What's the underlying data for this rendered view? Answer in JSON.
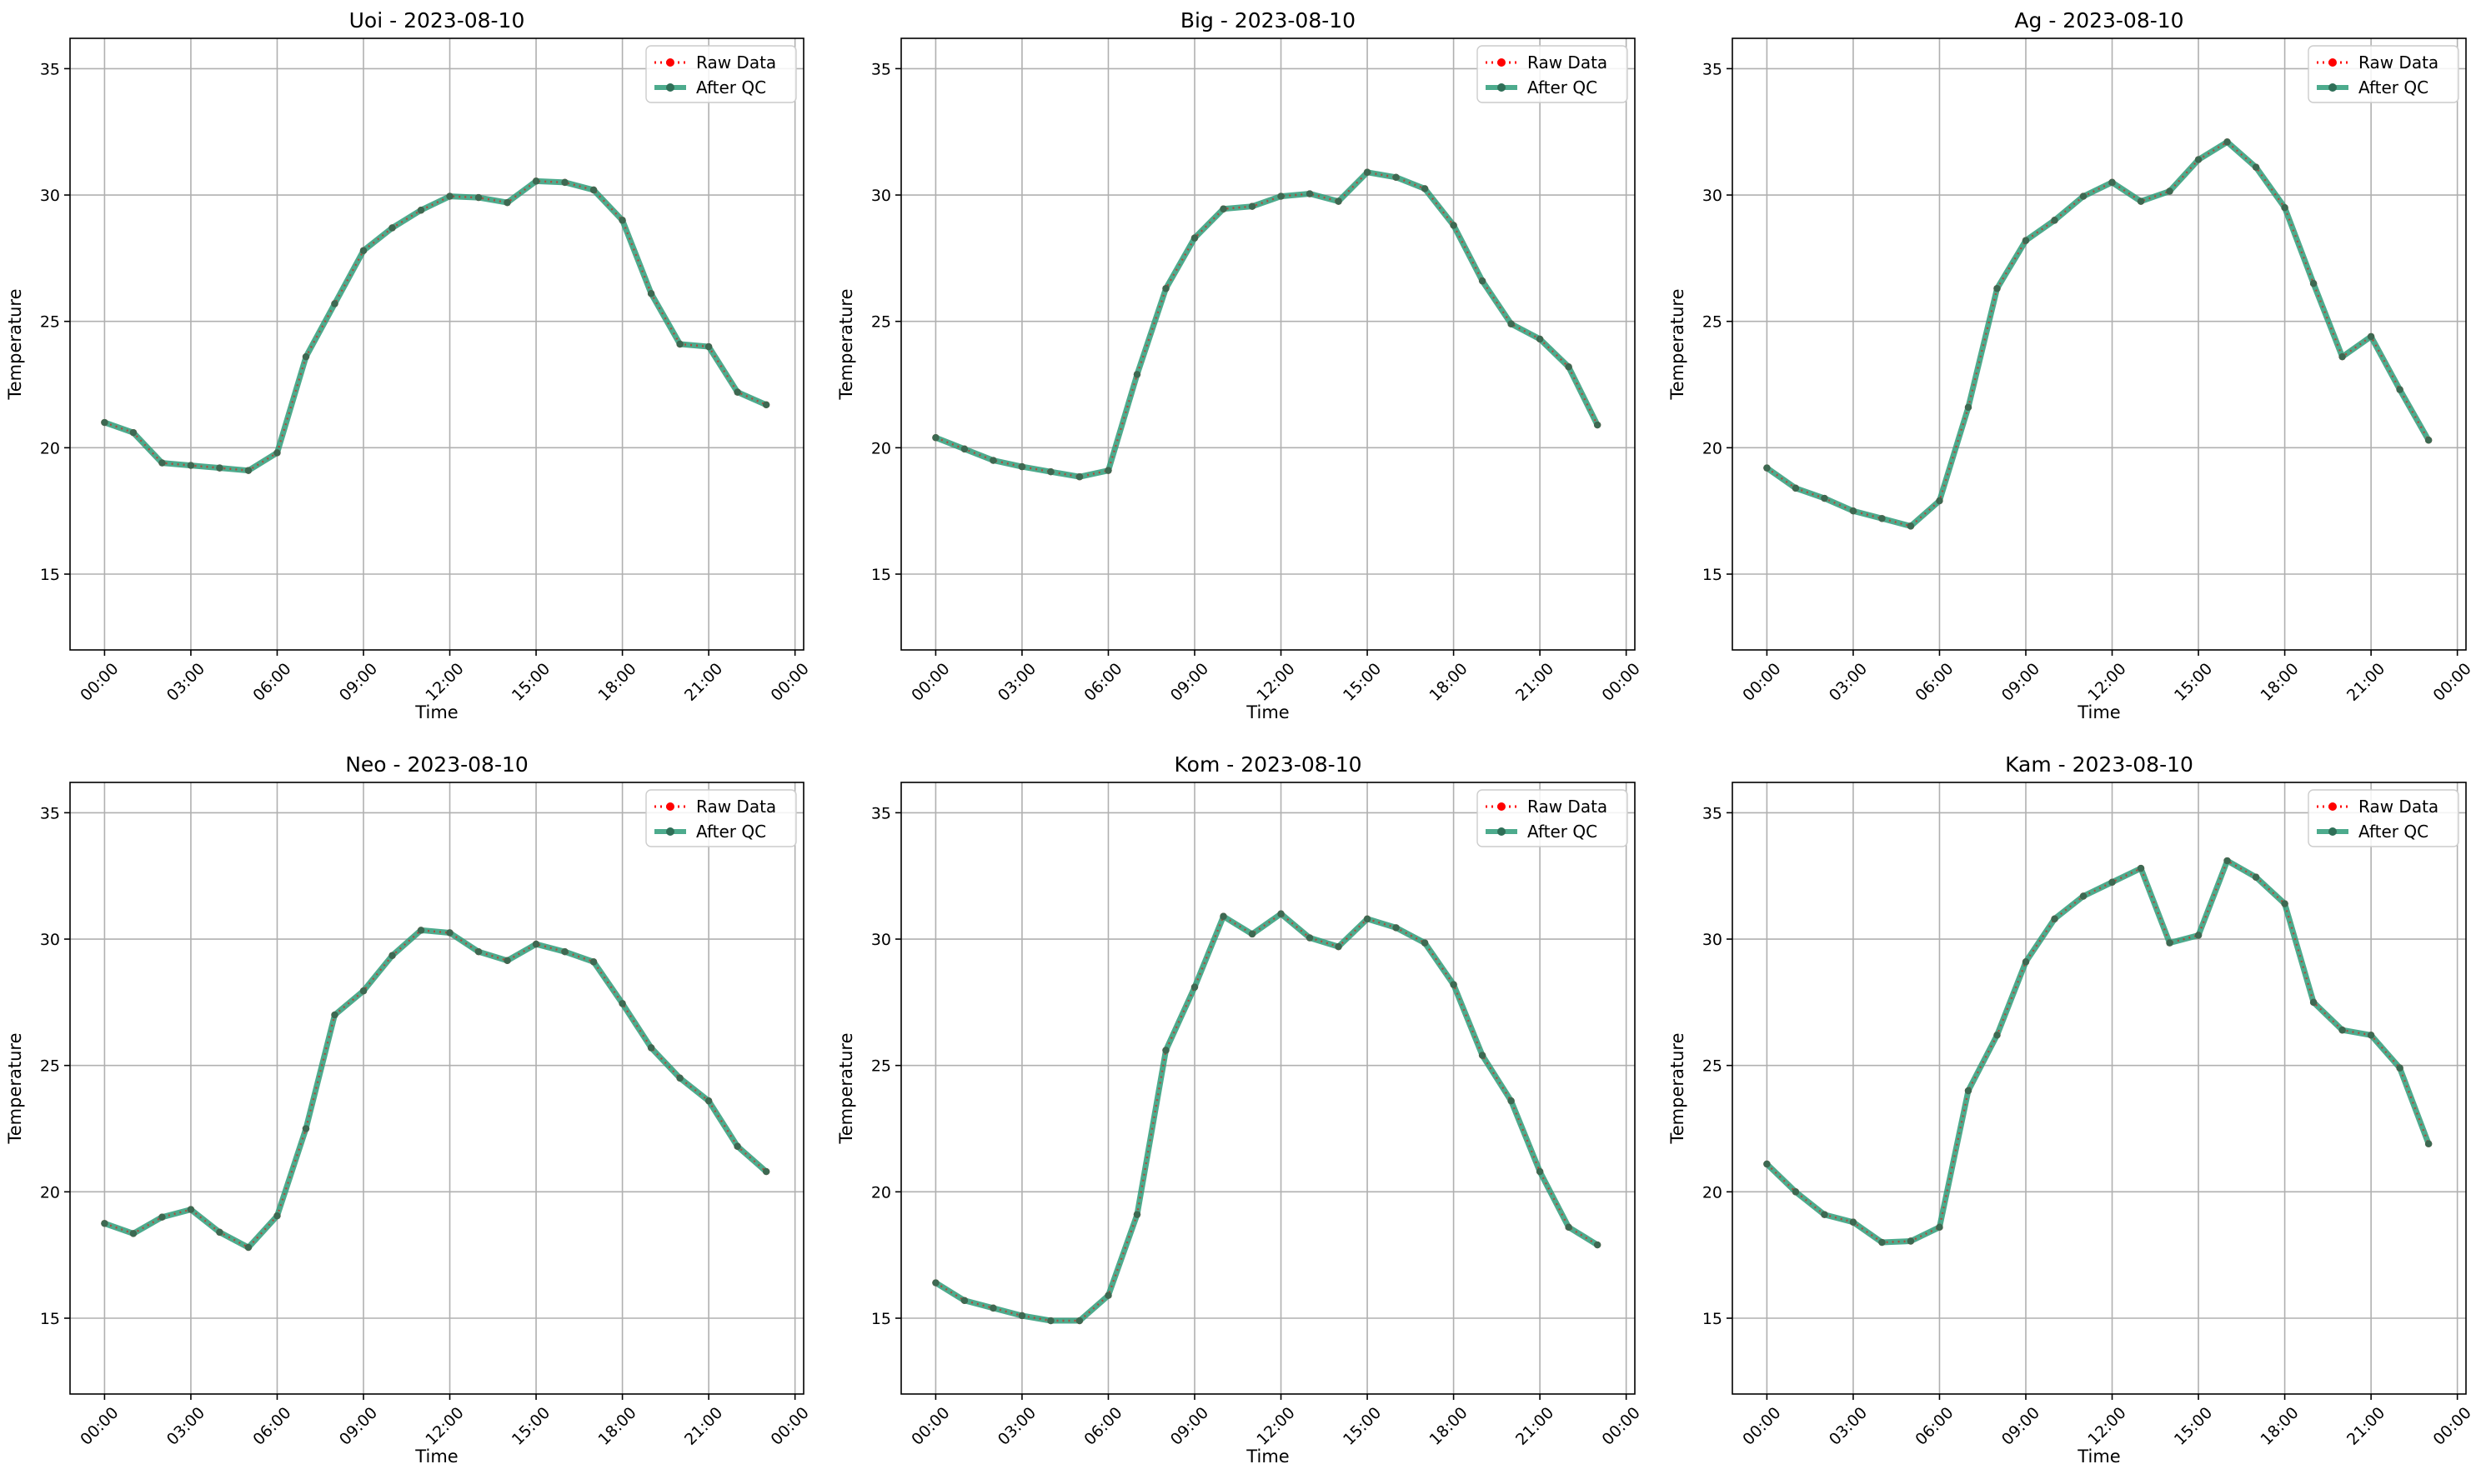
{
  "figure": {
    "legend": {
      "raw_label": "Raw Data",
      "qc_label": "After QC",
      "position": "upper-right",
      "raw_color": "#ff0000",
      "qc_color": "#2e9c79"
    },
    "xlabel": "Time",
    "ylabel": "Temperature",
    "x_ticks": [
      "00:00",
      "03:00",
      "06:00",
      "09:00",
      "12:00",
      "15:00",
      "18:00",
      "21:00",
      "00:00"
    ],
    "y_ticks": [
      "15",
      "20",
      "25",
      "30",
      "35"
    ],
    "ylim": [
      12,
      36.2
    ],
    "xlim_hours": [
      -1.2,
      24.3
    ],
    "grid": true
  },
  "chart_data": [
    {
      "type": "line",
      "title": "Uoi - 2023-08-10",
      "x_hours": [
        0,
        1,
        2,
        3,
        4,
        5,
        6,
        7,
        8,
        9,
        10,
        11,
        12,
        13,
        14,
        15,
        16,
        17,
        18,
        19,
        20,
        21,
        22,
        23
      ],
      "series": [
        {
          "name": "Raw Data",
          "values": [
            21.0,
            20.6,
            19.4,
            19.3,
            19.2,
            19.1,
            19.8,
            23.6,
            25.7,
            27.8,
            28.7,
            29.4,
            29.95,
            29.9,
            29.7,
            30.55,
            30.5,
            30.2,
            29.0,
            26.1,
            24.1,
            24.0,
            22.2,
            21.7
          ]
        },
        {
          "name": "After QC",
          "values": [
            21.0,
            20.6,
            19.4,
            19.3,
            19.2,
            19.1,
            19.8,
            23.6,
            25.7,
            27.8,
            28.7,
            29.4,
            29.95,
            29.9,
            29.7,
            30.55,
            30.5,
            30.2,
            29.0,
            26.1,
            24.1,
            24.0,
            22.2,
            21.7
          ]
        }
      ]
    },
    {
      "type": "line",
      "title": "Big - 2023-08-10",
      "x_hours": [
        0,
        1,
        2,
        3,
        4,
        5,
        6,
        7,
        8,
        9,
        10,
        11,
        12,
        13,
        14,
        15,
        16,
        17,
        18,
        19,
        20,
        21,
        22,
        23
      ],
      "series": [
        {
          "name": "Raw Data",
          "values": [
            20.4,
            19.95,
            19.5,
            19.25,
            19.05,
            18.85,
            19.1,
            22.9,
            26.3,
            28.3,
            29.45,
            29.55,
            29.95,
            30.05,
            29.75,
            30.9,
            30.7,
            30.25,
            28.8,
            26.6,
            24.9,
            24.3,
            23.2,
            20.9
          ]
        },
        {
          "name": "After QC",
          "values": [
            20.4,
            19.95,
            19.5,
            19.25,
            19.05,
            18.85,
            19.1,
            22.9,
            26.3,
            28.3,
            29.45,
            29.55,
            29.95,
            30.05,
            29.75,
            30.9,
            30.7,
            30.25,
            28.8,
            26.6,
            24.9,
            24.3,
            23.2,
            20.9
          ]
        }
      ]
    },
    {
      "type": "line",
      "title": "Ag - 2023-08-10",
      "x_hours": [
        0,
        1,
        2,
        3,
        4,
        5,
        6,
        7,
        8,
        9,
        10,
        11,
        12,
        13,
        14,
        15,
        16,
        17,
        18,
        19,
        20,
        21,
        22,
        23
      ],
      "series": [
        {
          "name": "Raw Data",
          "values": [
            19.2,
            18.4,
            18.0,
            17.5,
            17.2,
            16.9,
            17.9,
            21.6,
            26.3,
            28.2,
            29.0,
            29.95,
            30.5,
            29.75,
            30.15,
            31.4,
            32.1,
            31.1,
            29.5,
            26.5,
            23.6,
            24.4,
            22.3,
            20.3
          ]
        },
        {
          "name": "After QC",
          "values": [
            19.2,
            18.4,
            18.0,
            17.5,
            17.2,
            16.9,
            17.9,
            21.6,
            26.3,
            28.2,
            29.0,
            29.95,
            30.5,
            29.75,
            30.15,
            31.4,
            32.1,
            31.1,
            29.5,
            26.5,
            23.6,
            24.4,
            22.3,
            20.3
          ]
        }
      ]
    },
    {
      "type": "line",
      "title": "Neo - 2023-08-10",
      "x_hours": [
        0,
        1,
        2,
        3,
        4,
        5,
        6,
        7,
        8,
        9,
        10,
        11,
        12,
        13,
        14,
        15,
        16,
        17,
        18,
        19,
        20,
        21,
        22,
        23
      ],
      "series": [
        {
          "name": "Raw Data",
          "values": [
            18.75,
            18.35,
            19.0,
            19.3,
            18.4,
            17.8,
            19.05,
            22.5,
            27.0,
            27.95,
            29.35,
            30.35,
            30.25,
            29.5,
            29.15,
            29.8,
            29.5,
            29.1,
            27.45,
            25.7,
            24.5,
            23.6,
            21.8,
            20.8
          ]
        },
        {
          "name": "After QC",
          "values": [
            18.75,
            18.35,
            19.0,
            19.3,
            18.4,
            17.8,
            19.05,
            22.5,
            27.0,
            27.95,
            29.35,
            30.35,
            30.25,
            29.5,
            29.15,
            29.8,
            29.5,
            29.1,
            27.45,
            25.7,
            24.5,
            23.6,
            21.8,
            20.8
          ]
        }
      ]
    },
    {
      "type": "line",
      "title": "Kom - 2023-08-10",
      "x_hours": [
        0,
        1,
        2,
        3,
        4,
        5,
        6,
        7,
        8,
        9,
        10,
        11,
        12,
        13,
        14,
        15,
        16,
        17,
        18,
        19,
        20,
        21,
        22,
        23
      ],
      "series": [
        {
          "name": "Raw Data",
          "values": [
            16.4,
            15.7,
            15.4,
            15.1,
            14.9,
            14.9,
            15.9,
            19.1,
            25.6,
            28.1,
            30.9,
            30.2,
            31.0,
            30.05,
            29.7,
            30.8,
            30.45,
            29.85,
            28.2,
            25.4,
            23.6,
            20.8,
            18.6,
            17.9
          ]
        },
        {
          "name": "After QC",
          "values": [
            16.4,
            15.7,
            15.4,
            15.1,
            14.9,
            14.9,
            15.9,
            19.1,
            25.6,
            28.1,
            30.9,
            30.2,
            31.0,
            30.05,
            29.7,
            30.8,
            30.45,
            29.85,
            28.2,
            25.4,
            23.6,
            20.8,
            18.6,
            17.9
          ]
        }
      ]
    },
    {
      "type": "line",
      "title": "Kam - 2023-08-10",
      "x_hours": [
        0,
        1,
        2,
        3,
        4,
        5,
        6,
        7,
        8,
        9,
        10,
        11,
        12,
        13,
        14,
        15,
        16,
        17,
        18,
        19,
        20,
        21,
        22,
        23
      ],
      "series": [
        {
          "name": "Raw Data",
          "values": [
            21.1,
            20.0,
            19.1,
            18.8,
            18.0,
            18.05,
            18.6,
            24.0,
            26.2,
            29.1,
            30.8,
            31.7,
            32.25,
            32.8,
            29.85,
            30.15,
            33.1,
            32.45,
            31.4,
            27.5,
            26.4,
            26.2,
            24.9,
            21.9
          ]
        },
        {
          "name": "After QC",
          "values": [
            21.1,
            20.0,
            19.1,
            18.8,
            18.0,
            18.05,
            18.6,
            24.0,
            26.2,
            29.1,
            30.8,
            31.7,
            32.25,
            32.8,
            29.85,
            30.15,
            33.1,
            32.45,
            31.4,
            27.5,
            26.4,
            26.2,
            24.9,
            21.9
          ]
        }
      ]
    }
  ]
}
